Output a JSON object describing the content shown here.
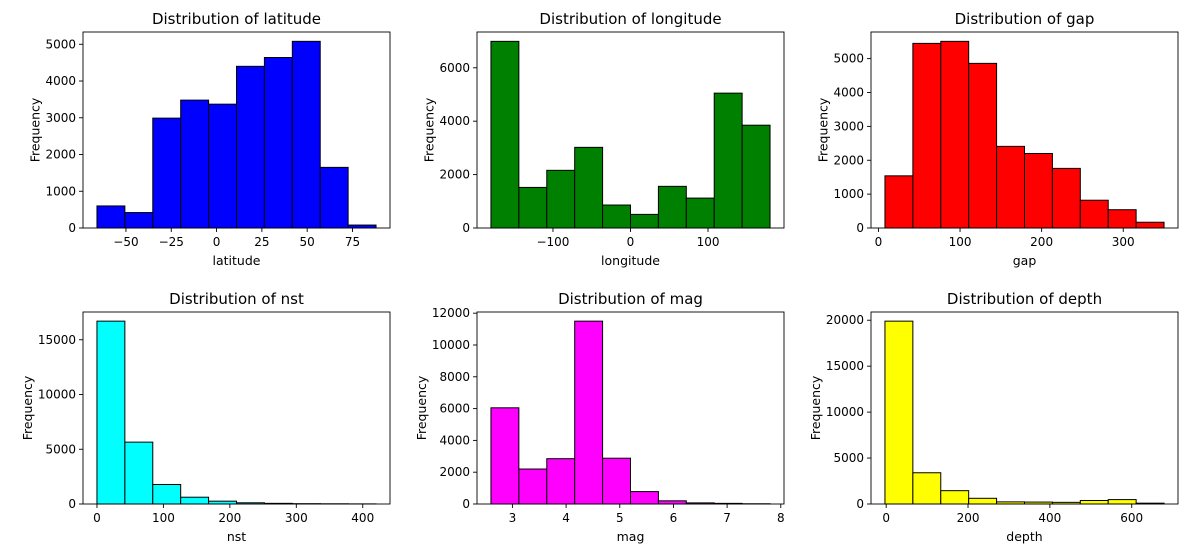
{
  "chart_data": [
    {
      "type": "bar",
      "title": "Distribution of latitude",
      "xlabel": "latitude",
      "ylabel": "Frequency",
      "color": "#0000ff",
      "bin_edges": [
        -66,
        -50.6,
        -35.2,
        -19.8,
        -4.4,
        11,
        26.4,
        41.8,
        57.2,
        72.6,
        88
      ],
      "values": [
        600,
        420,
        2990,
        3480,
        3370,
        4400,
        4640,
        5080,
        1650,
        80
      ],
      "xlim": [
        -73.7,
        95.7
      ],
      "ylim": [
        0,
        5334
      ],
      "xticks": [
        -50,
        -25,
        0,
        25,
        50,
        75
      ],
      "xtick_labels": [
        "−50",
        "−25",
        "0",
        "25",
        "50",
        "75"
      ],
      "yticks": [
        0,
        1000,
        2000,
        3000,
        4000,
        5000
      ],
      "ytick_labels": [
        "0",
        "1000",
        "2000",
        "3000",
        "4000",
        "5000"
      ]
    },
    {
      "type": "bar",
      "title": "Distribution of longitude",
      "xlabel": "longitude",
      "ylabel": "Frequency",
      "color": "#008000",
      "bin_edges": [
        -180,
        -144,
        -108,
        -72,
        -36,
        0,
        36,
        72,
        108,
        144,
        180
      ],
      "values": [
        6990,
        1520,
        2160,
        3020,
        860,
        510,
        1560,
        1120,
        5050,
        3850
      ],
      "xlim": [
        -198,
        198
      ],
      "ylim": [
        0,
        7340
      ],
      "xticks": [
        -100,
        0,
        100
      ],
      "xtick_labels": [
        "−100",
        "0",
        "100"
      ],
      "yticks": [
        0,
        2000,
        4000,
        6000
      ],
      "ytick_labels": [
        "0",
        "2000",
        "4000",
        "6000"
      ]
    },
    {
      "type": "bar",
      "title": "Distribution of gap",
      "xlabel": "gap",
      "ylabel": "Frequency",
      "color": "#ff0000",
      "bin_edges": [
        8,
        42.2,
        76.4,
        110.6,
        144.8,
        179,
        213.2,
        247.4,
        281.6,
        315.8,
        350
      ],
      "values": [
        1540,
        5450,
        5510,
        4860,
        2410,
        2200,
        1760,
        820,
        540,
        170
      ],
      "xlim": [
        -9.1,
        367.1
      ],
      "ylim": [
        0,
        5786
      ],
      "xticks": [
        0,
        100,
        200,
        300
      ],
      "xtick_labels": [
        "0",
        "100",
        "200",
        "300"
      ],
      "yticks": [
        0,
        1000,
        2000,
        3000,
        4000,
        5000
      ],
      "ytick_labels": [
        "0",
        "1000",
        "2000",
        "3000",
        "4000",
        "5000"
      ]
    },
    {
      "type": "bar",
      "title": "Distribution of nst",
      "xlabel": "nst",
      "ylabel": "Frequency",
      "color": "#00ffff",
      "bin_edges": [
        0,
        42,
        84,
        126,
        168,
        210,
        252,
        294,
        336,
        378,
        420
      ],
      "values": [
        16700,
        5650,
        1780,
        620,
        260,
        110,
        60,
        30,
        20,
        10
      ],
      "xlim": [
        -21,
        441
      ],
      "ylim": [
        0,
        17535
      ],
      "xticks": [
        0,
        100,
        200,
        300,
        400
      ],
      "xtick_labels": [
        "0",
        "100",
        "200",
        "300",
        "400"
      ],
      "yticks": [
        0,
        5000,
        10000,
        15000
      ],
      "ytick_labels": [
        "0",
        "5000",
        "10000",
        "15000"
      ]
    },
    {
      "type": "bar",
      "title": "Distribution of mag",
      "xlabel": "mag",
      "ylabel": "Frequency",
      "color": "#ff00ff",
      "bin_edges": [
        2.6,
        3.12,
        3.64,
        4.16,
        4.68,
        5.2,
        5.72,
        6.24,
        6.76,
        7.28,
        7.8
      ],
      "values": [
        6050,
        2200,
        2850,
        11500,
        2880,
        780,
        200,
        70,
        40,
        15
      ],
      "xlim": [
        2.34,
        8.06
      ],
      "ylim": [
        0,
        12075
      ],
      "xticks": [
        3,
        4,
        5,
        6,
        7,
        8
      ],
      "xtick_labels": [
        "3",
        "4",
        "5",
        "6",
        "7",
        "8"
      ],
      "yticks": [
        0,
        2000,
        4000,
        6000,
        8000,
        10000,
        12000
      ],
      "ytick_labels": [
        "0",
        "2000",
        "4000",
        "6000",
        "8000",
        "10000",
        "12000"
      ]
    },
    {
      "type": "bar",
      "title": "Distribution of depth",
      "xlabel": "depth",
      "ylabel": "Frequency",
      "color": "#ffff00",
      "bin_edges": [
        -3,
        65.2,
        133.4,
        201.6,
        269.8,
        338,
        406.2,
        474.4,
        542.6,
        610.8,
        679
      ],
      "values": [
        19900,
        3400,
        1450,
        620,
        230,
        210,
        180,
        380,
        480,
        90
      ],
      "xlim": [
        -37.1,
        713.1
      ],
      "ylim": [
        0,
        20895
      ],
      "xticks": [
        0,
        200,
        400,
        600
      ],
      "xtick_labels": [
        "0",
        "200",
        "400",
        "600"
      ],
      "yticks": [
        0,
        5000,
        10000,
        15000,
        20000
      ],
      "ytick_labels": [
        "0",
        "5000",
        "10000",
        "15000",
        "20000"
      ]
    }
  ]
}
